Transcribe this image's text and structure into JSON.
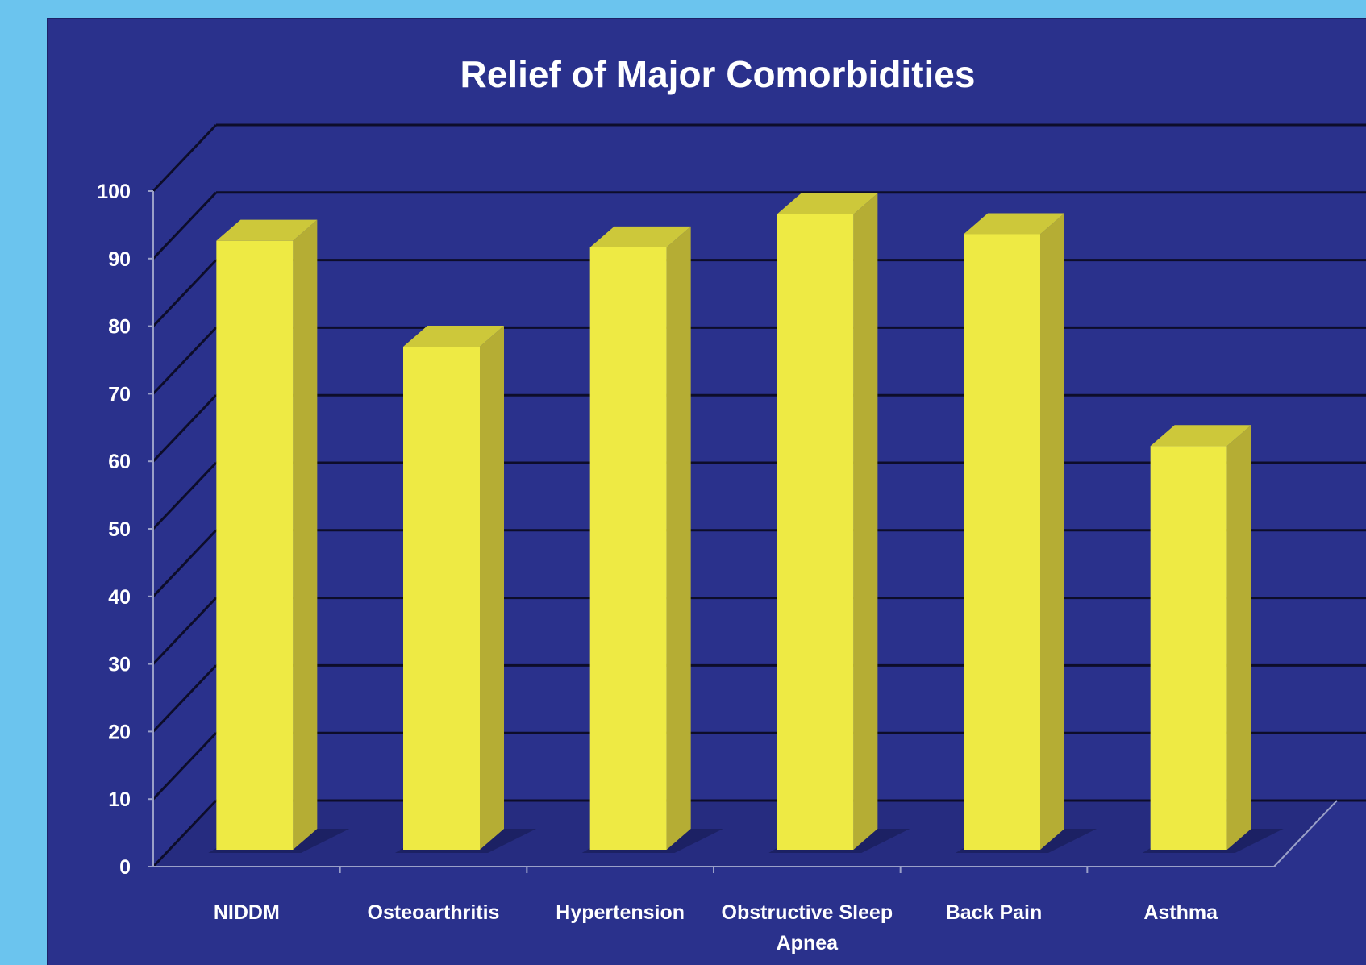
{
  "chart_data": {
    "type": "bar",
    "title": "Relief of Major Comorbidities",
    "xlabel": "",
    "ylabel": "",
    "categories": [
      "NIDDM",
      "Osteoarthritis",
      "Hypertension",
      "Obstructive Sleep Apnea",
      "Back Pain",
      "Asthma"
    ],
    "category_lines": [
      [
        "NIDDM"
      ],
      [
        "Osteoarthritis"
      ],
      [
        "Hypertension"
      ],
      [
        "Obstructive Sleep",
        "Apnea"
      ],
      [
        "Back Pain"
      ],
      [
        "Asthma"
      ]
    ],
    "values": [
      92,
      76,
      91,
      96,
      93,
      61
    ],
    "ylim": [
      0,
      100
    ],
    "yticks": [
      "0",
      "10",
      "20",
      "30",
      "40",
      "50",
      "60",
      "70",
      "80",
      "90",
      "100"
    ],
    "grid": true,
    "legend": "none",
    "style": "3d",
    "colors": {
      "bar_front": "#eeea44",
      "bar_side": "#b5ad34",
      "bar_top": "#cdc83a",
      "plot_background": "#2a318c",
      "grid": "#0d0d2a",
      "axis": "#9aa0c8",
      "text": "#ffffff"
    }
  }
}
